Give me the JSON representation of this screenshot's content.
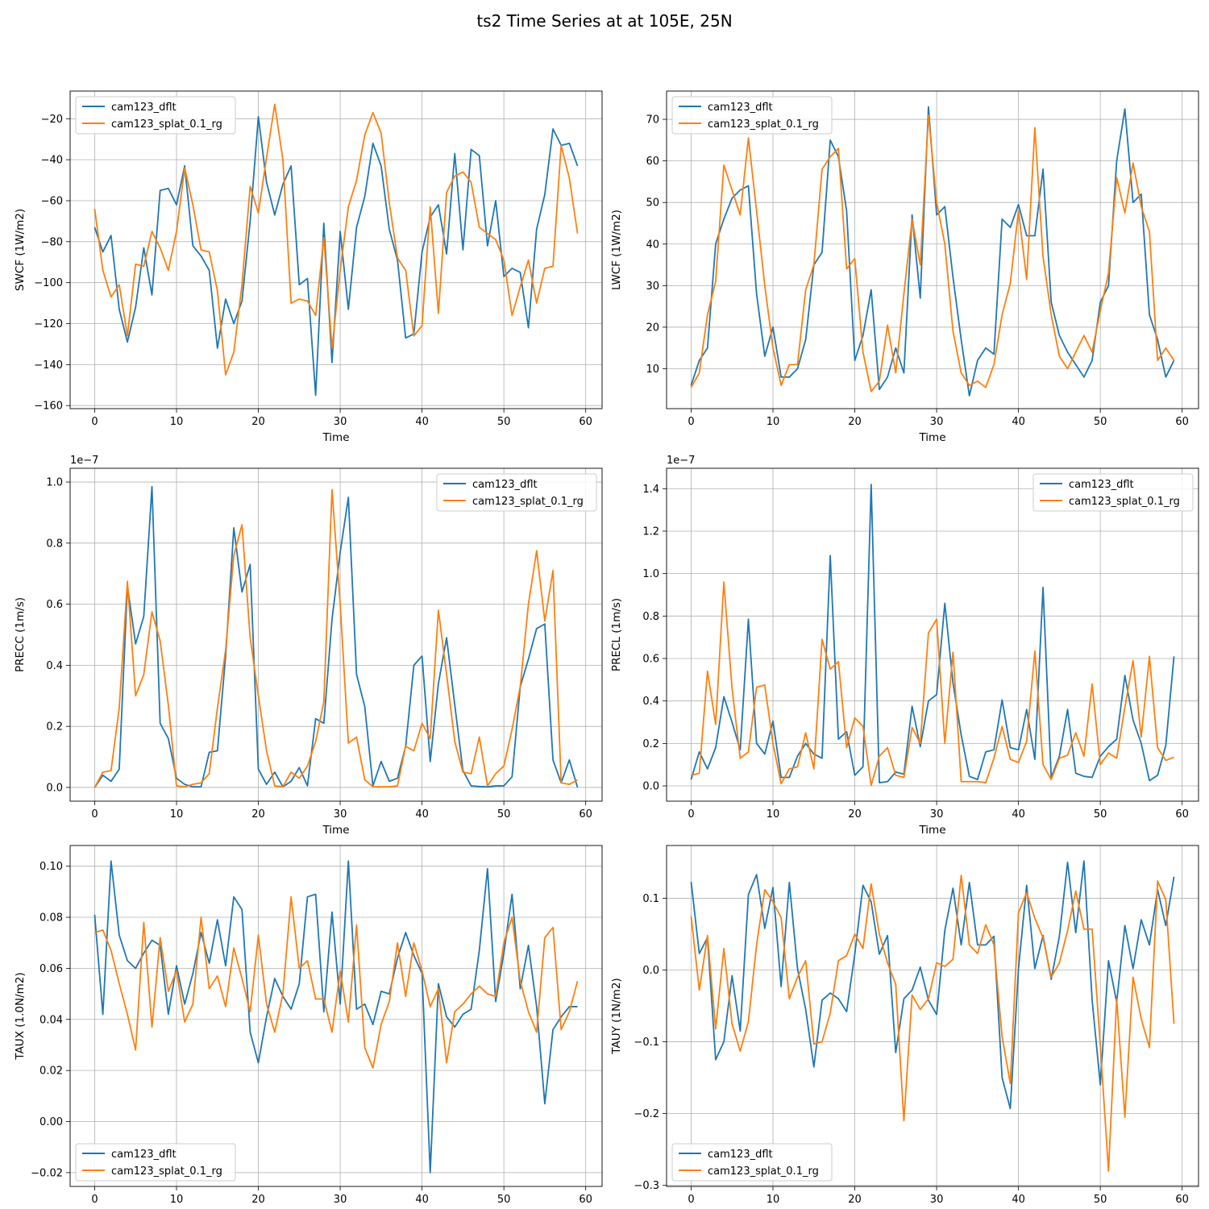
{
  "figure": {
    "title": "ts2 Time Series at at 105E, 25N"
  },
  "chart_data": [
    {
      "type": "line",
      "ylabel": "SWCF (1W/m2)",
      "xlabel": "Time",
      "xlim": [
        -3,
        62
      ],
      "ylim": [
        -161.5,
        -6.5
      ],
      "xticks": [
        0,
        10,
        20,
        30,
        40,
        50,
        60
      ],
      "yticks": [
        -160,
        -140,
        -120,
        -100,
        -80,
        -60,
        -40,
        -20
      ],
      "ytick_labels": [
        "−160",
        "−140",
        "−120",
        "−100",
        "−80",
        "−60",
        "−40",
        "−20"
      ],
      "offset_text": "",
      "grid": true,
      "legend": "upper left",
      "series": [
        {
          "name": "cam123_dflt",
          "color": "#1f77b4",
          "values": [
            -73,
            -85,
            -77,
            -113,
            -129,
            -112,
            -83,
            -106,
            -55,
            -54,
            -62,
            -43,
            -82,
            -87,
            -94,
            -132,
            -108,
            -120,
            -109,
            -70,
            -19,
            -51,
            -67,
            -52,
            -43,
            -101,
            -98,
            -155,
            -71,
            -139,
            -75,
            -113,
            -73,
            -58,
            -32,
            -43,
            -74,
            -89,
            -127,
            -125,
            -85,
            -68,
            -62,
            -86,
            -37,
            -84,
            -35,
            -38,
            -82,
            -60,
            -97,
            -93,
            -95,
            -122,
            -74,
            -57,
            -25,
            -33,
            -32,
            -43
          ]
        },
        {
          "name": "cam123_splat_0.1_rg",
          "color": "#ff7f0e",
          "values": [
            -64,
            -94,
            -107,
            -101,
            -126,
            -91,
            -92,
            -75,
            -83,
            -94,
            -75,
            -44,
            -62,
            -84,
            -85,
            -104,
            -145,
            -134,
            -101,
            -53,
            -66,
            -39,
            -13,
            -40,
            -110,
            -108,
            -109,
            -116,
            -78,
            -132,
            -94,
            -63,
            -50,
            -28,
            -17,
            -27,
            -61,
            -88,
            -94,
            -126,
            -121,
            -63,
            -115,
            -56,
            -48,
            -46,
            -51,
            -73,
            -76,
            -79,
            -89,
            -116,
            -102,
            -89,
            -110,
            -93,
            -92,
            -33,
            -49,
            -76
          ]
        }
      ]
    },
    {
      "type": "line",
      "ylabel": "LWCF (1W/m2)",
      "xlabel": "Time",
      "xlim": [
        -3,
        62
      ],
      "ylim": [
        0.4,
        76.8
      ],
      "xticks": [
        0,
        10,
        20,
        30,
        40,
        50,
        60
      ],
      "yticks": [
        10,
        20,
        30,
        40,
        50,
        60,
        70
      ],
      "ytick_labels": [
        "10",
        "20",
        "30",
        "40",
        "50",
        "60",
        "70"
      ],
      "offset_text": "",
      "grid": true,
      "legend": "upper left",
      "series": [
        {
          "name": "cam123_dflt",
          "color": "#1f77b4",
          "values": [
            6,
            12,
            15,
            40,
            46,
            51,
            53,
            54,
            28,
            13,
            20,
            8,
            8,
            10,
            17,
            35,
            38,
            65,
            61,
            48,
            12,
            18,
            29,
            5,
            8,
            15,
            9,
            47,
            27,
            73,
            47,
            49,
            32,
            17,
            3.5,
            12,
            15,
            13.5,
            46,
            44,
            49.5,
            42,
            42,
            58,
            26,
            18,
            14,
            11,
            8,
            12,
            26,
            30,
            60,
            72.5,
            50,
            52,
            23,
            17,
            8,
            12
          ]
        },
        {
          "name": "cam123_splat_0.1_rg",
          "color": "#ff7f0e",
          "values": [
            5.5,
            9,
            23,
            31,
            59,
            53,
            47,
            65.5,
            48,
            30,
            15,
            6,
            11,
            11,
            29,
            35,
            58,
            61,
            63,
            34,
            36.5,
            14,
            4.5,
            7,
            20.5,
            9,
            28,
            46,
            35,
            71,
            50,
            40,
            19,
            9,
            6,
            7,
            5.5,
            11,
            23,
            30.5,
            48,
            31.5,
            68,
            37,
            23,
            13,
            10,
            14,
            18,
            14,
            24,
            33,
            56,
            47.5,
            59.5,
            49,
            43,
            12,
            15,
            12
          ]
        }
      ]
    },
    {
      "type": "line",
      "ylabel": "PRECC (1m/s)",
      "xlabel": "Time",
      "xlim": [
        -3,
        62
      ],
      "ylim": [
        -0.045,
        1.045
      ],
      "xticks": [
        0,
        10,
        20,
        30,
        40,
        50,
        60
      ],
      "yticks": [
        0.0,
        0.2,
        0.4,
        0.6,
        0.8,
        1.0
      ],
      "ytick_labels": [
        "0.0",
        "0.2",
        "0.4",
        "0.6",
        "0.8",
        "1.0"
      ],
      "offset_text": "1e−7",
      "grid": true,
      "legend": "upper right",
      "series": [
        {
          "name": "cam123_dflt",
          "color": "#1f77b4",
          "values": [
            0,
            0.04,
            0.02,
            0.06,
            0.66,
            0.47,
            0.56,
            0.985,
            0.21,
            0.16,
            0.03,
            0.01,
            0.002,
            0.002,
            0.115,
            0.12,
            0.43,
            0.85,
            0.64,
            0.73,
            0.06,
            0.01,
            0.05,
            0.002,
            0.02,
            0.065,
            0.005,
            0.225,
            0.21,
            0.55,
            0.77,
            0.95,
            0.37,
            0.265,
            0.005,
            0.085,
            0.02,
            0.03,
            0.135,
            0.4,
            0.43,
            0.085,
            0.34,
            0.49,
            0.27,
            0.055,
            0.005,
            0.003,
            0.002,
            0.005,
            0.005,
            0.035,
            0.33,
            0.42,
            0.52,
            0.535,
            0.09,
            0.015,
            0.09,
            0
          ]
        },
        {
          "name": "cam123_splat_0.1_rg",
          "color": "#ff7f0e",
          "values": [
            0,
            0.05,
            0.055,
            0.26,
            0.675,
            0.3,
            0.37,
            0.575,
            0.48,
            0.27,
            0.005,
            0.002,
            0.01,
            0.015,
            0.045,
            0.26,
            0.45,
            0.76,
            0.86,
            0.49,
            0.3,
            0.12,
            0.005,
            0.002,
            0.05,
            0.03,
            0.07,
            0.15,
            0.28,
            0.975,
            0.6,
            0.145,
            0.165,
            0.025,
            0.002,
            0.002,
            0.002,
            0.005,
            0.135,
            0.12,
            0.21,
            0.16,
            0.58,
            0.37,
            0.15,
            0.05,
            0.045,
            0.165,
            0.005,
            0.045,
            0.07,
            0.19,
            0.33,
            0.6,
            0.775,
            0.545,
            0.71,
            0.015,
            0.01,
            0.025
          ]
        }
      ]
    },
    {
      "type": "line",
      "ylabel": "PRECL (1m/s)",
      "xlabel": "Time",
      "xlim": [
        -3,
        62
      ],
      "ylim": [
        -0.072,
        1.496
      ],
      "xticks": [
        0,
        10,
        20,
        30,
        40,
        50,
        60
      ],
      "yticks": [
        0.0,
        0.2,
        0.4,
        0.6,
        0.8,
        1.0,
        1.2,
        1.4
      ],
      "ytick_labels": [
        "0.0",
        "0.2",
        "0.4",
        "0.6",
        "0.8",
        "1.0",
        "1.2",
        "1.4"
      ],
      "offset_text": "1e−7",
      "grid": true,
      "legend": "upper right",
      "series": [
        {
          "name": "cam123_dflt",
          "color": "#1f77b4",
          "values": [
            0.03,
            0.16,
            0.08,
            0.18,
            0.42,
            0.3,
            0.17,
            0.785,
            0.2,
            0.15,
            0.305,
            0.04,
            0.04,
            0.14,
            0.2,
            0.15,
            0.13,
            1.085,
            0.22,
            0.255,
            0.05,
            0.09,
            1.42,
            0.015,
            0.02,
            0.065,
            0.055,
            0.375,
            0.185,
            0.4,
            0.43,
            0.86,
            0.485,
            0.24,
            0.045,
            0.03,
            0.16,
            0.17,
            0.405,
            0.18,
            0.17,
            0.36,
            0.125,
            0.935,
            0.04,
            0.14,
            0.36,
            0.06,
            0.045,
            0.04,
            0.14,
            0.185,
            0.22,
            0.52,
            0.31,
            0.2,
            0.025,
            0.05,
            0.19,
            0.61
          ]
        },
        {
          "name": "cam123_splat_0.1_rg",
          "color": "#ff7f0e",
          "values": [
            0.05,
            0.06,
            0.54,
            0.29,
            0.96,
            0.46,
            0.13,
            0.16,
            0.465,
            0.475,
            0.2,
            0.01,
            0.08,
            0.09,
            0.25,
            0.08,
            0.69,
            0.55,
            0.585,
            0.18,
            0.32,
            0.28,
            0.002,
            0.14,
            0.18,
            0.05,
            0.04,
            0.275,
            0.2,
            0.72,
            0.785,
            0.2,
            0.63,
            0.02,
            0.02,
            0.02,
            0.015,
            0.13,
            0.28,
            0.125,
            0.11,
            0.21,
            0.635,
            0.1,
            0.03,
            0.13,
            0.145,
            0.25,
            0.14,
            0.48,
            0.1,
            0.155,
            0.13,
            0.37,
            0.59,
            0.23,
            0.61,
            0.18,
            0.12,
            0.135
          ]
        }
      ]
    },
    {
      "type": "line",
      "ylabel": "TAUX (1.0N/m2)",
      "xlabel": "Time",
      "xlim": [
        -3,
        62
      ],
      "ylim": [
        -0.0254,
        0.1081
      ],
      "xticks": [
        0,
        10,
        20,
        30,
        40,
        50,
        60
      ],
      "yticks": [
        -0.02,
        0.0,
        0.02,
        0.04,
        0.06,
        0.08,
        0.1
      ],
      "ytick_labels": [
        "−0.02",
        "0.00",
        "0.02",
        "0.04",
        "0.06",
        "0.08",
        "0.10"
      ],
      "offset_text": "",
      "grid": true,
      "legend": "lower left",
      "series": [
        {
          "name": "cam123_dflt",
          "color": "#1f77b4",
          "values": [
            0.081,
            0.042,
            0.102,
            0.073,
            0.063,
            0.06,
            0.066,
            0.071,
            0.069,
            0.042,
            0.061,
            0.046,
            0.058,
            0.074,
            0.062,
            0.079,
            0.061,
            0.088,
            0.083,
            0.035,
            0.023,
            0.041,
            0.056,
            0.049,
            0.044,
            0.054,
            0.088,
            0.089,
            0.043,
            0.082,
            0.046,
            0.102,
            0.044,
            0.046,
            0.038,
            0.051,
            0.05,
            0.064,
            0.074,
            0.065,
            0.058,
            -0.02,
            0.054,
            0.041,
            0.037,
            0.042,
            0.044,
            0.067,
            0.099,
            0.047,
            0.066,
            0.089,
            0.052,
            0.069,
            0.045,
            0.007,
            0.036,
            0.041,
            0.045,
            0.045
          ]
        },
        {
          "name": "cam123_splat_0.1_rg",
          "color": "#ff7f0e",
          "values": [
            0.074,
            0.075,
            0.067,
            0.054,
            0.042,
            0.028,
            0.078,
            0.037,
            0.072,
            0.051,
            0.059,
            0.039,
            0.046,
            0.08,
            0.052,
            0.057,
            0.045,
            0.068,
            0.056,
            0.043,
            0.073,
            0.046,
            0.035,
            0.05,
            0.088,
            0.06,
            0.063,
            0.048,
            0.048,
            0.035,
            0.059,
            0.039,
            0.077,
            0.029,
            0.021,
            0.038,
            0.047,
            0.07,
            0.049,
            0.07,
            0.059,
            0.045,
            0.052,
            0.023,
            0.043,
            0.046,
            0.05,
            0.053,
            0.05,
            0.049,
            0.07,
            0.08,
            0.055,
            0.043,
            0.035,
            0.072,
            0.076,
            0.036,
            0.043,
            0.055
          ]
        }
      ]
    },
    {
      "type": "line",
      "ylabel": "TAUY (1N/m2)",
      "xlabel": "Time",
      "xlim": [
        -3,
        62
      ],
      "ylim": [
        -0.3015,
        0.1735
      ],
      "xticks": [
        0,
        10,
        20,
        30,
        40,
        50,
        60
      ],
      "yticks": [
        -0.3,
        -0.2,
        -0.1,
        0.0,
        0.1
      ],
      "ytick_labels": [
        "−0.3",
        "−0.2",
        "−0.1",
        "0.0",
        "0.1"
      ],
      "offset_text": "",
      "grid": true,
      "legend": "lower left",
      "series": [
        {
          "name": "cam123_dflt",
          "color": "#1f77b4",
          "values": [
            0.123,
            0.023,
            0.045,
            -0.125,
            -0.1,
            -0.008,
            -0.085,
            0.105,
            0.133,
            0.058,
            0.115,
            -0.023,
            0.122,
            0.002,
            -0.055,
            -0.135,
            -0.042,
            -0.032,
            -0.04,
            -0.058,
            0.022,
            0.118,
            0.095,
            0.022,
            0.048,
            -0.115,
            -0.04,
            -0.028,
            0.004,
            -0.042,
            -0.062,
            0.055,
            0.114,
            0.035,
            0.122,
            0.035,
            0.035,
            0.047,
            -0.15,
            -0.193,
            0.002,
            0.118,
            0.002,
            0.048,
            -0.013,
            0.047,
            0.15,
            0.052,
            0.152,
            -0.042,
            -0.16,
            0.013,
            -0.045,
            0.062,
            0.002,
            0.07,
            0.035,
            0.112,
            0.062,
            0.13
          ]
        },
        {
          "name": "cam123_splat_0.1_rg",
          "color": "#ff7f0e",
          "values": [
            0.075,
            -0.028,
            0.048,
            -0.082,
            0.03,
            -0.075,
            -0.113,
            -0.072,
            0.035,
            0.112,
            0.095,
            0.073,
            -0.04,
            -0.01,
            0.013,
            -0.103,
            -0.1,
            -0.06,
            0.013,
            0.02,
            0.05,
            0.03,
            0.12,
            0.05,
            0.01,
            -0.02,
            -0.21,
            -0.035,
            -0.055,
            -0.04,
            0.01,
            0.005,
            0.015,
            0.132,
            0.035,
            0.023,
            0.063,
            0.035,
            -0.093,
            -0.158,
            0.08,
            0.108,
            0.072,
            0.045,
            -0.01,
            0.01,
            0.055,
            0.11,
            0.057,
            0.057,
            -0.105,
            -0.28,
            -0.04,
            -0.205,
            -0.01,
            -0.068,
            -0.108,
            0.124,
            0.098,
            -0.075
          ]
        }
      ]
    }
  ]
}
